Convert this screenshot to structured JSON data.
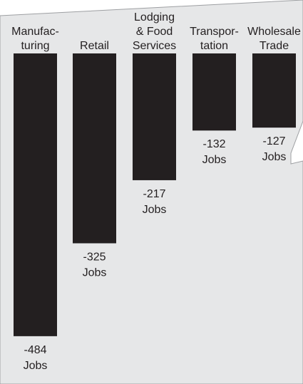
{
  "chart_data": {
    "type": "bar",
    "title": "",
    "xlabel": "",
    "ylabel": "",
    "orientation": "downward",
    "categories": [
      [
        "Manufac-",
        "turing"
      ],
      [
        "Retail"
      ],
      [
        "Lodging",
        "& Food",
        "Services"
      ],
      [
        "Transpor-",
        "tation"
      ],
      [
        "Wholesale",
        "Trade"
      ]
    ],
    "values": [
      -484,
      -325,
      -217,
      -132,
      -127
    ],
    "value_labels": [
      "-484",
      "-325",
      "-217",
      "-132",
      "-127"
    ],
    "unit_label": "Jobs",
    "ylim": [
      -500,
      0
    ],
    "grid": false,
    "colors": {
      "bar": "#231f20",
      "panel": "#e6e7e8",
      "panel_stroke": "#9d9fa2",
      "text": "#231f20",
      "background": "#ffffff"
    }
  }
}
